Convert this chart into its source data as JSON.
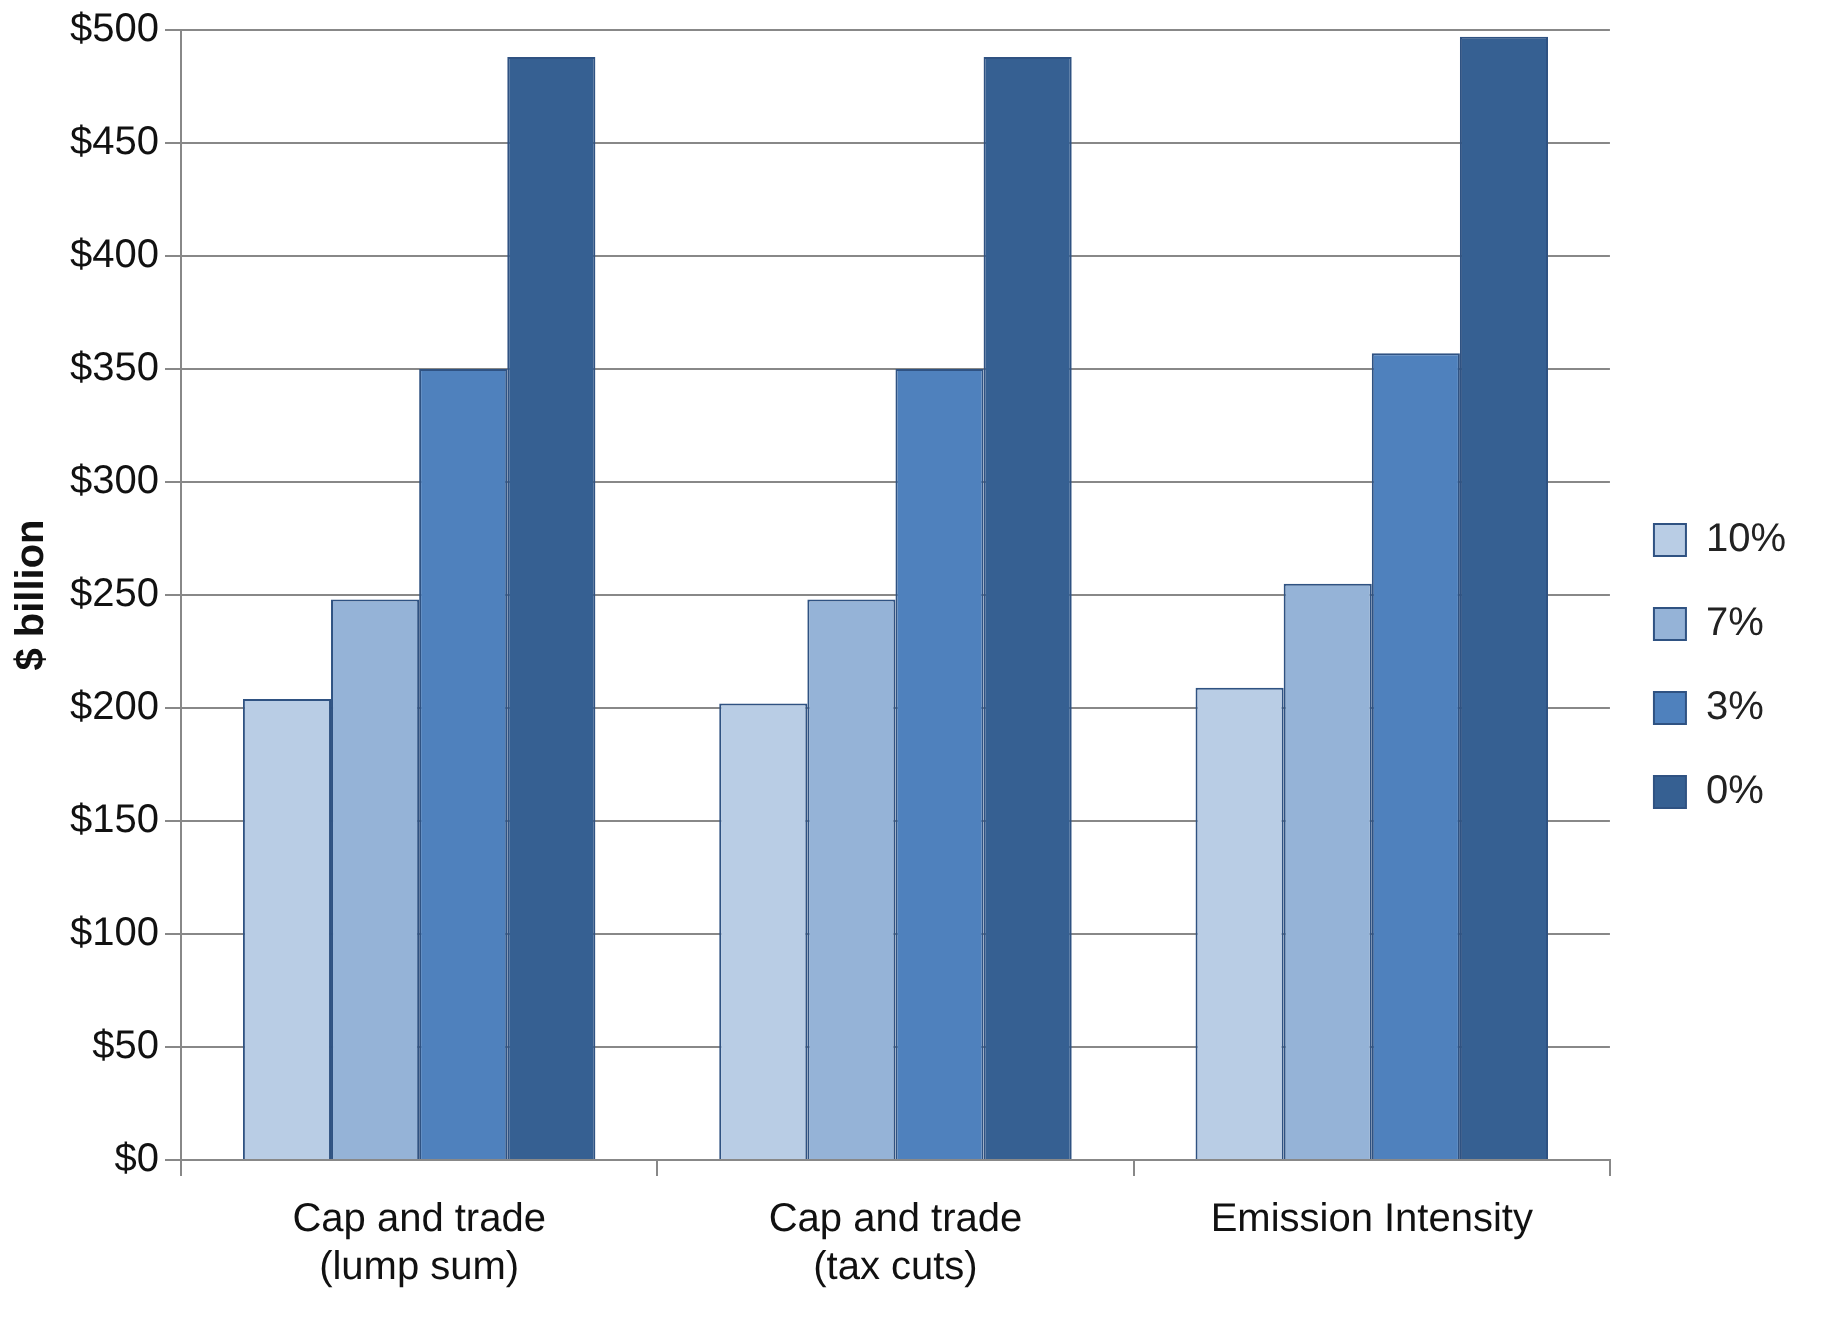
{
  "chart_data": {
    "type": "bar",
    "ylabel": "$ billion",
    "categories": [
      "Cap and trade\n(lump sum)",
      "Cap and trade\n(tax cuts)",
      "Emission Intensity"
    ],
    "series": [
      {
        "name": "10%",
        "color": "#b9cde5",
        "values": [
          204,
          202,
          209
        ]
      },
      {
        "name": "7%",
        "color": "#95b3d7",
        "values": [
          248,
          248,
          255
        ]
      },
      {
        "name": "3%",
        "color": "#4f81bd",
        "values": [
          350,
          350,
          357
        ]
      },
      {
        "name": "0%",
        "color": "#366092",
        "values": [
          488,
          488,
          497
        ]
      }
    ],
    "ylim": [
      0,
      500
    ],
    "yticks": [
      {
        "value": 0,
        "label": "$0"
      },
      {
        "value": 50,
        "label": "$50"
      },
      {
        "value": 100,
        "label": "$100"
      },
      {
        "value": 150,
        "label": "$150"
      },
      {
        "value": 200,
        "label": "$200"
      },
      {
        "value": 250,
        "label": "$250"
      },
      {
        "value": 300,
        "label": "$300"
      },
      {
        "value": 350,
        "label": "$350"
      },
      {
        "value": 400,
        "label": "$400"
      },
      {
        "value": 450,
        "label": "$450"
      },
      {
        "value": 500,
        "label": "$500"
      }
    ],
    "grid": "y",
    "legend": "right"
  }
}
